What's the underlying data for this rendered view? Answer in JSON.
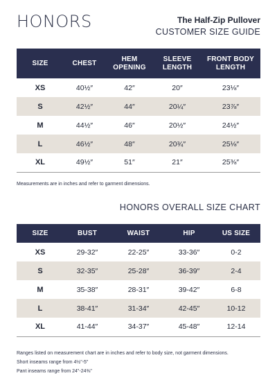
{
  "brand": {
    "logo_text": "HONORS"
  },
  "product": {
    "title": "The Half-Zip Pullover",
    "subtitle": "CUSTOMER SIZE GUIDE"
  },
  "garment_table": {
    "headers": [
      "SIZE",
      "CHEST",
      "HEM OPENING",
      "SLEEVE LENGTH",
      "FRONT BODY LENGTH"
    ],
    "rows": [
      [
        "XS",
        "40½″",
        "42″",
        "20″",
        "23⅛″"
      ],
      [
        "S",
        "42½″",
        "44″",
        "20¼″",
        "23⅞″"
      ],
      [
        "M",
        "44½″",
        "46″",
        "20½″",
        "24½″"
      ],
      [
        "L",
        "46½″",
        "48″",
        "20¾″",
        "25⅛″"
      ],
      [
        "XL",
        "49½″",
        "51″",
        "21″",
        "25⅜″"
      ]
    ],
    "note": "Measurements are in inches and refer to garment dimensions."
  },
  "overall_chart": {
    "title": "HONORS OVERALL SIZE CHART",
    "headers": [
      "SIZE",
      "BUST",
      "WAIST",
      "HIP",
      "US SIZE"
    ],
    "rows": [
      [
        "XS",
        "29-32″",
        "22-25″",
        "33-36″",
        "0-2"
      ],
      [
        "S",
        "32-35″",
        "25-28″",
        "36-39″",
        "2-4"
      ],
      [
        "M",
        "35-38″",
        "28-31″",
        "39-42″",
        "6-8"
      ],
      [
        "L",
        "38-41″",
        "31-34″",
        "42-45″",
        "10-12"
      ],
      [
        "XL",
        "41-44″",
        "34-37″",
        "45-48″",
        "12-14"
      ]
    ],
    "notes": [
      "Ranges listed on measurement chart are in inches and refer to body size, not garment dimensions.",
      "Short inseams range from 4½\"-5\"",
      "Pant inseams range from 24\"-24⅜\""
    ]
  },
  "colors": {
    "header_navy": "#2a2f4f",
    "row_beige": "#e6e1da"
  }
}
